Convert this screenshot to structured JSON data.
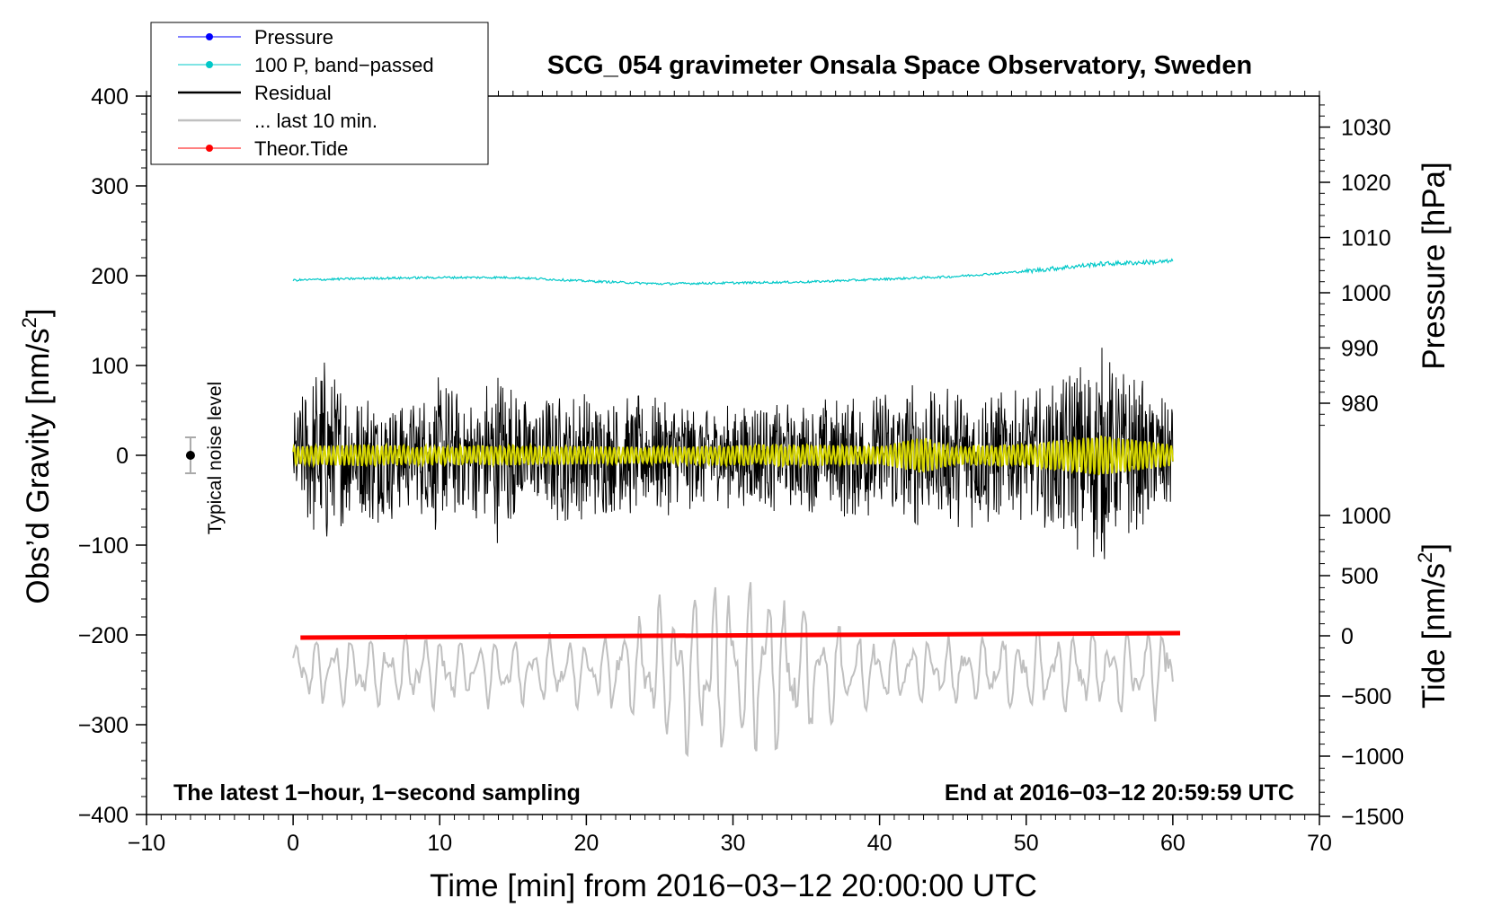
{
  "chart_data": {
    "type": "line",
    "title": "SCG_054 gravimeter Onsala Space Observatory, Sweden",
    "xlabel": "Time [min] from 2016−03−12 20:00:00 UTC",
    "ylabel_main": "Obs’d Gravity [nm/s",
    "ylabel_sup": "2",
    "ylabel_close": "]",
    "y2label": "Pressure [hPa]",
    "y3label_main": "Tide [nm/s",
    "y3label_sup": "2",
    "y3label_close": "]",
    "xlim": [
      -10,
      70
    ],
    "ylim": [
      -400,
      400
    ],
    "xticks": [
      "−10",
      "0",
      "10",
      "20",
      "30",
      "40",
      "50",
      "60",
      "70"
    ],
    "yticks": [
      "400",
      "300",
      "200",
      "100",
      "0",
      "−100",
      "−200",
      "−300",
      "−400"
    ],
    "pressure_axis": {
      "ticks": [
        "1030",
        "1020",
        "1010",
        "1000",
        "990",
        "980"
      ],
      "values": [
        1030,
        1020,
        1010,
        1000,
        990,
        980
      ]
    },
    "tide_axis": {
      "ticks": [
        "1000",
        "500",
        "0",
        "−500",
        "−1000",
        "−1500"
      ],
      "values": [
        1000,
        500,
        0,
        -500,
        -1000,
        -1500
      ]
    },
    "annotation_left": "The latest 1−hour, 1−second sampling",
    "annotation_right": "End at 2016−03−12 20:59:59 UTC",
    "noise_label": "Typical noise level",
    "noise_bar": {
      "x": -7,
      "center": 0,
      "half_range": 20
    },
    "legend": [
      {
        "label": "Pressure",
        "color": "#0000ff",
        "marker": true
      },
      {
        "label": "100 P, band−passed",
        "color": "#00c8c8",
        "marker": true
      },
      {
        "label": "Residual",
        "color": "#000000",
        "marker": false
      },
      {
        "label": "... last 10 min.",
        "color": "#c0c0c0",
        "marker": false
      },
      {
        "label": "Theor.Tide",
        "color": "#ff0000",
        "marker": true
      }
    ],
    "series": [
      {
        "name": "100 P, band−passed",
        "color": "#00c8c8",
        "x": [
          0,
          5,
          10,
          15,
          20,
          25,
          30,
          35,
          40,
          45,
          50,
          55,
          60
        ],
        "y": [
          195,
          197,
          198,
          198,
          194,
          191,
          192,
          193,
          196,
          199,
          205,
          213,
          216
        ]
      },
      {
        "name": "Residual",
        "color": "#000000",
        "envelope_x": [
          0,
          2,
          4,
          6,
          8,
          10,
          12,
          14,
          16,
          18,
          20,
          22,
          24,
          26,
          28,
          30,
          32,
          34,
          36,
          38,
          40,
          42,
          44,
          46,
          48,
          50,
          52,
          54,
          55,
          56,
          58,
          60
        ],
        "envelope_amp": [
          40,
          95,
          60,
          70,
          50,
          75,
          55,
          85,
          55,
          65,
          60,
          55,
          60,
          55,
          50,
          50,
          55,
          50,
          55,
          60,
          65,
          70,
          60,
          70,
          65,
          60,
          75,
          95,
          105,
          90,
          70,
          60
        ]
      },
      {
        "name": "Residual (filtered)",
        "color": "#d6d600",
        "envelope_x": [
          0,
          5,
          10,
          15,
          20,
          25,
          30,
          35,
          40,
          43,
          45,
          50,
          55,
          60
        ],
        "envelope_amp": [
          10,
          12,
          10,
          11,
          10,
          9,
          11,
          12,
          10,
          20,
          10,
          12,
          22,
          12
        ]
      },
      {
        "name": "... last 10 min.",
        "color": "#c0c0c0",
        "baseline": -240,
        "envelope_x": [
          0,
          5,
          10,
          15,
          20,
          22,
          24,
          26,
          28,
          30,
          32,
          34,
          36,
          38,
          40,
          45,
          50,
          55,
          60
        ],
        "envelope_amp": [
          40,
          45,
          45,
          40,
          40,
          50,
          70,
          105,
          110,
          115,
          110,
          100,
          70,
          50,
          45,
          40,
          45,
          50,
          60
        ]
      },
      {
        "name": "Theor.Tide",
        "color": "#ff0000",
        "x": [
          0.5,
          60.5
        ],
        "y": [
          -203,
          -198
        ]
      }
    ]
  }
}
